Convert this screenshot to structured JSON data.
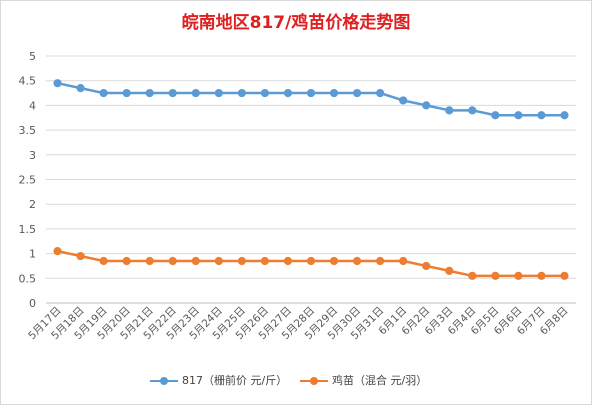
{
  "chart_data": {
    "type": "line",
    "title": "皖南地区817/鸡苗价格走势图",
    "categories": [
      "5月17日",
      "5月18日",
      "5月19日",
      "5月20日",
      "5月21日",
      "5月22日",
      "5月23日",
      "5月24日",
      "5月25日",
      "5月26日",
      "5月27日",
      "5月28日",
      "5月29日",
      "5月30日",
      "5月31日",
      "6月1日",
      "6月2日",
      "6月3日",
      "6月4日",
      "6月5日",
      "6月6日",
      "6月7日",
      "6月8日"
    ],
    "series": [
      {
        "name": "817（栅前价 元/斤）",
        "color": "#5b9bd5",
        "values": [
          4.45,
          4.35,
          4.25,
          4.25,
          4.25,
          4.25,
          4.25,
          4.25,
          4.25,
          4.25,
          4.25,
          4.25,
          4.25,
          4.25,
          4.25,
          4.1,
          4.0,
          3.9,
          3.9,
          3.8,
          3.8,
          3.8,
          3.8
        ]
      },
      {
        "name": "鸡苗（混合 元/羽）",
        "color": "#ed7d31",
        "values": [
          1.05,
          0.95,
          0.85,
          0.85,
          0.85,
          0.85,
          0.85,
          0.85,
          0.85,
          0.85,
          0.85,
          0.85,
          0.85,
          0.85,
          0.85,
          0.85,
          0.75,
          0.65,
          0.55,
          0.55,
          0.55,
          0.55,
          0.55
        ]
      }
    ],
    "ylim": [
      0,
      5
    ],
    "yticks": [
      "0",
      "0.5",
      "1",
      "1.5",
      "2",
      "2.5",
      "3",
      "3.5",
      "4",
      "4.5",
      "5"
    ],
    "grid": true,
    "legend": "bottom"
  }
}
